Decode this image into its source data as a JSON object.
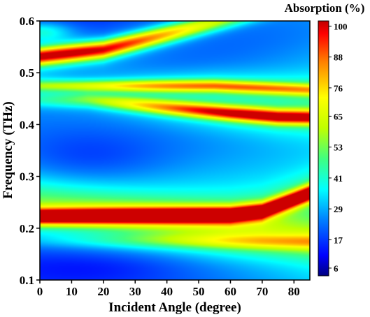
{
  "chart_data": {
    "type": "heatmap",
    "xlabel": "Incident Angle (degree)",
    "ylabel": "Frequency (THz)",
    "colorbar_title": "Absorption (%)",
    "xlim": [
      0,
      85
    ],
    "ylim": [
      0.1,
      0.6
    ],
    "x_ticks": [
      0,
      10,
      20,
      30,
      40,
      50,
      60,
      70,
      80
    ],
    "y_ticks": [
      0.1,
      0.2,
      0.3,
      0.4,
      0.5,
      0.6
    ],
    "colorbar_ticks": [
      6,
      17,
      29,
      41,
      53,
      65,
      76,
      88,
      100
    ],
    "colorbar_range": [
      3,
      102
    ],
    "colormap": [
      "#000080",
      "#0000ff",
      "#0080ff",
      "#00ffff",
      "#40ff80",
      "#c0ff00",
      "#ffff00",
      "#ff8000",
      "#ff0000",
      "#c00000"
    ],
    "background_level": 15,
    "bands": [
      {
        "f0": 0.222,
        "f_bend": 0.045,
        "bend_power": 2.3,
        "width": 0.011,
        "peak": 100,
        "peak_angle": 0,
        "decay": 0.0,
        "samples": [
          [
            0,
            0.222
          ],
          [
            60,
            0.225
          ],
          [
            70,
            0.232
          ],
          [
            80,
            0.255
          ],
          [
            85,
            0.267
          ]
        ]
      },
      {
        "f0": 0.532,
        "f_bend": 0.065,
        "bend_power": 1.3,
        "width": 0.012,
        "peak": 95,
        "peak_angle": 5,
        "decay": 0.45,
        "samples": [
          [
            0,
            0.532
          ],
          [
            20,
            0.545
          ],
          [
            40,
            0.575
          ],
          [
            50,
            0.59
          ]
        ]
      },
      {
        "f0": 0.452,
        "f_bend": -0.04,
        "bend_power": 1.0,
        "width": 0.01,
        "peak": 88,
        "peak_angle": 72,
        "decay": 0.5,
        "samples": [
          [
            15,
            0.448
          ],
          [
            40,
            0.433
          ],
          [
            60,
            0.422
          ],
          [
            75,
            0.415
          ],
          [
            85,
            0.414
          ]
        ]
      },
      {
        "f0": 0.475,
        "f_bend": 0.0,
        "bend_power": 1.0,
        "width": 0.008,
        "peak": 65,
        "peak_angle": 55,
        "decay": 0.3,
        "samples": [
          [
            30,
            0.475
          ],
          [
            55,
            0.475
          ],
          [
            75,
            0.47
          ]
        ]
      },
      {
        "f0": 0.25,
        "f_bend": -0.08,
        "bend_power": 1.0,
        "width": 0.03,
        "peak": 30,
        "peak_angle": 0,
        "decay": 0.0,
        "samples": [
          [
            0,
            0.25
          ],
          [
            80,
            0.19
          ]
        ]
      },
      {
        "f0": 0.175,
        "f_bend": 0.0,
        "bend_power": 1.0,
        "width": 0.01,
        "peak": 40,
        "peak_angle": 75,
        "decay": 0.5,
        "samples": [
          [
            40,
            0.175
          ],
          [
            80,
            0.173
          ]
        ]
      }
    ],
    "blue_pockets": [
      {
        "x": 15,
        "f": 0.335,
        "dx": 25,
        "df": 0.05,
        "depth": 8
      },
      {
        "x": 18,
        "f": 0.125,
        "dx": 30,
        "df": 0.035,
        "depth": 6
      },
      {
        "x": 15,
        "f": 0.475,
        "dx": 15,
        "df": 0.03,
        "depth": 6
      }
    ],
    "green_top_left": {
      "x": 0,
      "f": 0.58,
      "dx": 10,
      "df": 0.02,
      "level": 55
    }
  }
}
